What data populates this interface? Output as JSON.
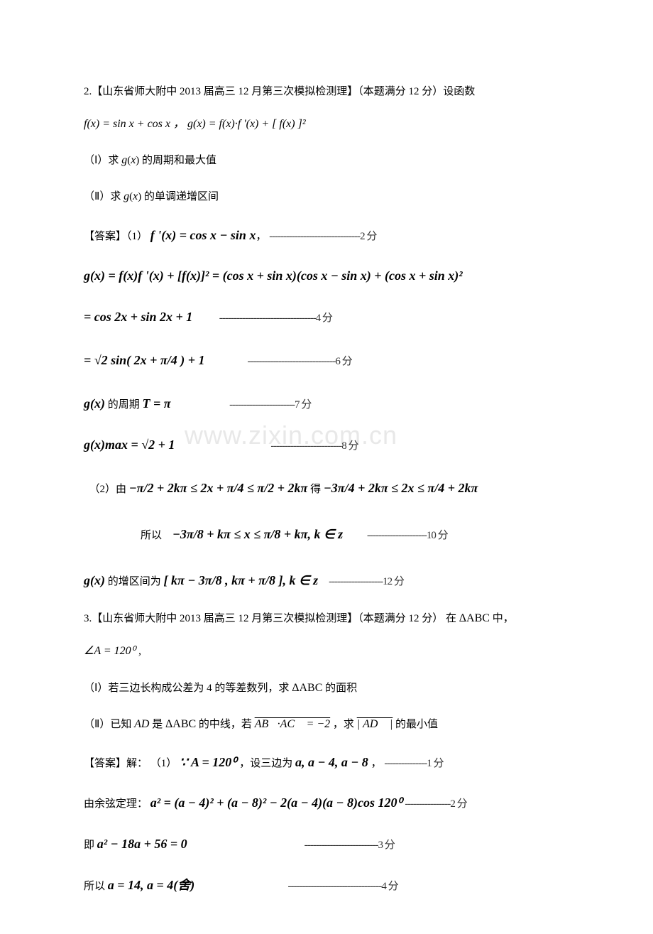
{
  "watermark": "www.zixin.com.cn",
  "p2": {
    "header": "2.【山东省师大附中 2013 届高三 12 月第三次模拟检测理】（本题满分 12 分）设函数",
    "func_def": "f(x) = sin x + cos x ，  g(x) = f(x)·f '(x) + [ f(x) ]²",
    "sub_q1": "（Ⅰ）求 g(x) 的周期和最大值",
    "sub_q2": "（Ⅱ）求 g(x) 的单调递增区间",
    "ans_label": "【答案】",
    "a1_prefix": "（1）",
    "a1_eq": "f '(x) = cos x − sin x",
    "comma": "，",
    "d2": "--------------------------------2 分",
    "gx_expand": "g(x) = f(x)f '(x) + [f(x)]² = (cos x + sin x)(cos x − sin x) + (cos x + sin x)²",
    "gx_simplify": "= cos 2x + sin 2x + 1",
    "d4": "----------------------------------4 分",
    "gx_sqrt": "= √2 sin( 2x + π/4 ) + 1",
    "d6": "-------------------------------6 分",
    "period_text1": "g(x)",
    "period_text2": " 的周期 ",
    "period_text3": "T = π",
    "d7": "-----------------------7 分",
    "gmax": "g(x)max = √2 + 1",
    "d8": "-------------------------8 分",
    "a2_prefix": "（2）由 ",
    "a2_ineq": "−π/2 + 2kπ ≤ 2x + π/4 ≤ π/2 + 2kπ",
    "a2_mid": " 得 ",
    "a2_ineq2": "−3π/4 + 2kπ ≤ 2x ≤ π/4 + 2kπ",
    "so": "所以",
    "so_ineq": "−3π/8 + kπ ≤ x ≤ π/8 + kπ, k ∈ z",
    "d10": "---------------------10 分",
    "inc_text1": "g(x)",
    "inc_text2": " 的增区间为 ",
    "inc_interval": "[ kπ − 3π/8 , kπ + π/8 ], k ∈ z",
    "d12": "-------------------12 分"
  },
  "p3": {
    "header1": "3.【山东省师大附中 2013 届高三 12 月第三次模拟检测理】（本题满分 12 分） 在 ",
    "header_tri": "ΔABC",
    "header2": " 中，",
    "angle": "∠A = 120⁰ ,",
    "sub_q1a": "（Ⅰ）若三边长构成公差为 4 的等差数列，求 ",
    "sub_q1_tri": "ΔABC",
    "sub_q1b": " 的面积",
    "sub_q2a": "（Ⅱ）已知 ",
    "sub_q2_ad": "AD",
    "sub_q2b": " 是 ",
    "sub_q2_tri": "ΔABC",
    "sub_q2c": " 的中线，若 ",
    "sub_q2_vec": "AB⃗·AC⃗ = −2",
    "sub_q2d": " ，求 ",
    "sub_q2_advec": "| AD⃗ |",
    "sub_q2e": " 的最小值",
    "ans_label": "【答案】解：",
    "a1_prefix": "（1）",
    "a1_because": "∵ A = 120⁰",
    "a1_mid": "，设三边为 ",
    "a1_sides": "a, a − 4, a − 8",
    "a1_comma": " ，",
    "d1": "---------------1 分",
    "cos_label": "由余弦定理：",
    "cos_eq": "a² = (a − 4)² + (a − 8)² − 2(a − 4)(a − 8)cos 120⁰",
    "d2": "----------------2 分",
    "ji": "即 ",
    "quad": "a² − 18a + 56 = 0",
    "d3": "--------------------------3 分",
    "suoyi": "所以 ",
    "roots": "a = 14, a = 4(舍)",
    "d4": "---------------------------------4 分"
  }
}
